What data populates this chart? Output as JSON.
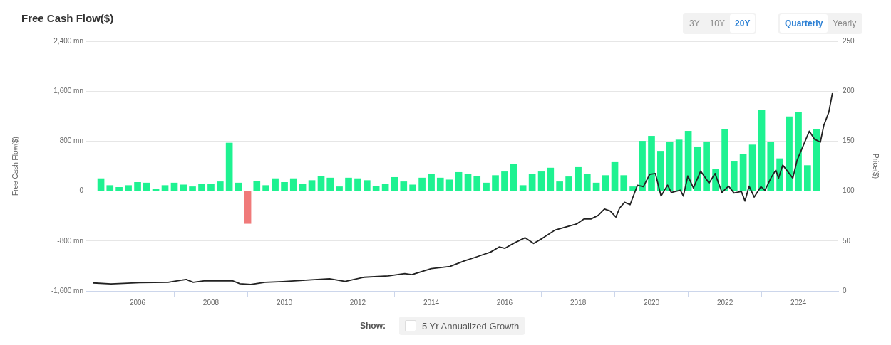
{
  "chart_data": {
    "type": "bar",
    "title": "Free Cash Flow($)",
    "ylabel": "Free Cash Flow($)",
    "y2label": "Price($)",
    "x": [
      "2005-01",
      "2005-04",
      "2005-07",
      "2005-10",
      "2006-01",
      "2006-04",
      "2006-07",
      "2006-10",
      "2007-01",
      "2007-04",
      "2007-07",
      "2007-10",
      "2008-01",
      "2008-04",
      "2008-07",
      "2008-10",
      "2009-01",
      "2009-04",
      "2009-07",
      "2009-10",
      "2010-01",
      "2010-04",
      "2010-07",
      "2010-10",
      "2011-01",
      "2011-04",
      "2011-07",
      "2011-10",
      "2012-01",
      "2012-04",
      "2012-07",
      "2012-10",
      "2013-01",
      "2013-04",
      "2013-07",
      "2013-10",
      "2014-01",
      "2014-04",
      "2014-07",
      "2014-10",
      "2015-01",
      "2015-04",
      "2015-07",
      "2015-10",
      "2016-01",
      "2016-04",
      "2016-07",
      "2016-10",
      "2017-01",
      "2017-04",
      "2017-07",
      "2017-10",
      "2018-01",
      "2018-04",
      "2018-07",
      "2018-10",
      "2019-01",
      "2019-04",
      "2019-07",
      "2019-10",
      "2020-01",
      "2020-04",
      "2020-07",
      "2020-10",
      "2021-01",
      "2021-04",
      "2021-07",
      "2021-10",
      "2022-01",
      "2022-04",
      "2022-07",
      "2022-10",
      "2023-01",
      "2023-04",
      "2023-07",
      "2023-10",
      "2024-01",
      "2024-04",
      "2024-07"
    ],
    "series": [
      {
        "colors": [
          "#1ef291",
          "#1ef291",
          "#1ef291",
          "#1ef291",
          "#1ef291",
          "#1ef291",
          "#1ef291",
          "#1ef291",
          "#1ef291",
          "#1ef291",
          "#1ef291",
          "#1ef291",
          "#1ef291",
          "#1ef291",
          "#1ef291",
          "#1ef291",
          "#f07a7a",
          "#1ef291",
          "#1ef291",
          "#1ef291",
          "#1ef291",
          "#1ef291",
          "#1ef291",
          "#1ef291",
          "#1ef291",
          "#1ef291",
          "#1ef291",
          "#1ef291",
          "#1ef291",
          "#1ef291",
          "#1ef291",
          "#1ef291",
          "#1ef291",
          "#1ef291",
          "#1ef291",
          "#1ef291",
          "#1ef291",
          "#1ef291",
          "#1ef291",
          "#1ef291",
          "#1ef291",
          "#1ef291",
          "#1ef291",
          "#1ef291",
          "#1ef291",
          "#1ef291",
          "#1ef291",
          "#1ef291",
          "#1ef291",
          "#1ef291",
          "#1ef291",
          "#1ef291",
          "#1ef291",
          "#1ef291",
          "#1ef291",
          "#1ef291",
          "#1ef291",
          "#1ef291",
          "#1ef291",
          "#1ef291",
          "#1ef291",
          "#1ef291",
          "#1ef291",
          "#1ef291",
          "#1ef291",
          "#1ef291",
          "#1ef291",
          "#1ef291",
          "#1ef291",
          "#1ef291",
          "#1ef291",
          "#1ef291",
          "#1ef291",
          "#1ef291",
          "#1ef291",
          "#1ef291",
          "#1ef291",
          "#1ef291",
          "#1ef291"
        ],
        "values": [
          200,
          90,
          60,
          90,
          140,
          130,
          30,
          90,
          130,
          100,
          70,
          110,
          110,
          150,
          770,
          130,
          -520,
          160,
          90,
          200,
          140,
          200,
          110,
          170,
          240,
          210,
          70,
          210,
          200,
          170,
          80,
          110,
          220,
          150,
          100,
          210,
          270,
          210,
          180,
          300,
          270,
          240,
          130,
          250,
          310,
          430,
          90,
          270,
          310,
          370,
          150,
          230,
          380,
          270,
          130,
          250,
          460,
          250,
          70,
          800,
          880,
          640,
          780,
          820,
          960,
          710,
          790,
          350,
          990,
          470,
          590,
          740,
          1290,
          780,
          520,
          1190,
          1260,
          410,
          990
        ]
      },
      {
        "type": "line",
        "axis": "y2",
        "color": "#222222",
        "x": [
          "2004-10-15",
          "2005-04-12",
          "2006-01-22",
          "2006-11-01",
          "2007-04-30",
          "2007-07-08",
          "2007-10-23",
          "2008-08-05",
          "2008-10-15",
          "2009-01-31",
          "2009-06-21",
          "2009-12-16",
          "2010-09-27",
          "2011-03-25",
          "2011-08-28",
          "2012-03-03",
          "2012-10-30",
          "2013-04-12",
          "2013-06-21",
          "2014-01-01",
          "2014-07-05",
          "2014-11-24",
          "2015-03-25",
          "2015-08-14",
          "2015-11-07",
          "2016-01-04",
          "2016-04-05",
          "2016-07-23",
          "2016-10-15",
          "2016-12-28",
          "2017-05-18",
          "2017-08-19",
          "2017-12-16",
          "2018-02-27",
          "2018-05-08",
          "2018-07-19",
          "2018-09-20",
          "2018-11-16",
          "2019-01-12",
          "2019-02-17",
          "2019-04-08",
          "2019-06-02",
          "2019-08-14",
          "2019-10-12",
          "2019-12-14",
          "2020-02-09",
          "2020-04-05",
          "2020-06-09",
          "2020-07-16",
          "2020-10-15",
          "2020-11-13",
          "2020-12-28",
          "2021-02-21",
          "2021-05-04",
          "2021-07-27",
          "2021-09-24",
          "2021-12-02",
          "2022-02-06",
          "2022-04-01",
          "2022-06-13",
          "2022-07-19",
          "2022-08-29",
          "2022-10-19",
          "2022-12-24",
          "2023-02-03",
          "2023-04-08",
          "2023-05-22",
          "2023-06-18",
          "2023-07-30",
          "2023-11-07",
          "2023-12-20",
          "2024-04-19",
          "2024-06-09",
          "2024-08-07",
          "2024-09-10",
          "2024-10-30",
          "2024-12-05"
        ],
        "values": [
          8,
          7,
          8.3,
          8.6,
          11.5,
          8.6,
          10,
          10,
          7.2,
          6.5,
          8.6,
          9.4,
          11.2,
          12.2,
          9.6,
          13.7,
          15,
          17.3,
          16.3,
          22.3,
          24.5,
          30,
          34,
          38.9,
          44,
          42.7,
          48,
          53.3,
          47.5,
          51.9,
          61,
          63.6,
          67,
          72,
          72,
          75.6,
          82,
          80,
          74,
          82.8,
          88.8,
          86.4,
          105.8,
          104.4,
          116.7,
          117.6,
          95,
          106,
          98.6,
          100.8,
          95,
          115.2,
          103.2,
          120,
          108,
          117.6,
          98.6,
          105,
          98,
          99.6,
          90,
          105,
          94,
          104.4,
          100.8,
          114,
          121,
          113,
          126,
          113,
          131,
          160,
          152,
          149,
          165.7,
          179,
          198
        ]
      }
    ],
    "xlim": [
      "2004-08",
      "2025-02"
    ],
    "xticks": [
      "2006",
      "2008",
      "2010",
      "2012",
      "2014",
      "2016",
      "2018",
      "2020",
      "2022",
      "2024"
    ],
    "ylim": [
      -1600,
      2400
    ],
    "yticks": [
      {
        "value": -1600,
        "label": "-1,600 mn"
      },
      {
        "value": -800,
        "label": "-800 mn"
      },
      {
        "value": 0,
        "label": "0"
      },
      {
        "value": 800,
        "label": "800 mn"
      },
      {
        "value": 1600,
        "label": "1,600 mn"
      },
      {
        "value": 2400,
        "label": "2,400 mn"
      }
    ],
    "y2lim": [
      0,
      250
    ],
    "y2ticks": [
      0,
      50,
      100,
      150,
      200,
      250
    ],
    "grid": "y",
    "legend": false,
    "marker": "none",
    "line_style": "solid",
    "annotations": [
      "3Y",
      "10Y",
      "20Y",
      "Quarterly",
      "Yearly",
      "Show:",
      "5 Yr Annualized Growth"
    ]
  }
}
